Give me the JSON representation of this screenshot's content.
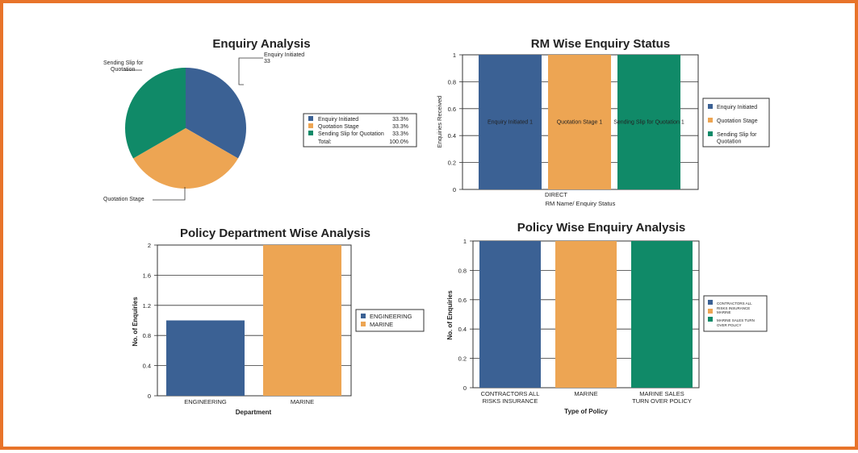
{
  "colors": {
    "blue": "#3b6194",
    "orange": "#eda553",
    "green": "#108a68",
    "border": "#e8742a"
  },
  "chart_data": [
    {
      "type": "pie",
      "title": "Enquiry Analysis",
      "categories": [
        "Enquiry Initiated",
        "Quotation Stage",
        "Sending Slip for Quotation"
      ],
      "values": [
        33.3,
        33.3,
        33.3
      ],
      "percent_labels": [
        "33.3%",
        "33.3%",
        "33.3%"
      ],
      "total_label": "Total:",
      "total_value": "100.0%",
      "callouts": {
        "initiated_label": "Enquiry Initiated",
        "initiated_value": "33",
        "quotation": "Quotation Stage",
        "slip_line1": "Sending Slip for",
        "slip_line2": "Quotation"
      },
      "legend": "right"
    },
    {
      "type": "bar",
      "title": "RM Wise Enquiry Status",
      "categories": [
        "DIRECT"
      ],
      "series": [
        {
          "name": "Enquiry Initiated",
          "values": [
            1
          ],
          "data_label": "Enquiry Initiated 1"
        },
        {
          "name": "Quotation Stage",
          "values": [
            1
          ],
          "data_label": "Quotation Stage 1"
        },
        {
          "name": "Sending Slip for Quotation",
          "values": [
            1
          ],
          "data_label": "Sending Slip for Quotation 1"
        }
      ],
      "legend_lines": [
        [
          "Enquiry Initiated"
        ],
        [
          "Quotation Stage"
        ],
        [
          "Sending Slip for",
          "Quotation"
        ]
      ],
      "xlabel": "RM Name/ Enquiry Status",
      "ylabel": "Enquiries Received",
      "ylim": [
        0,
        1
      ],
      "yticks": [
        "0",
        "0.2",
        "0.4",
        "0.6",
        "0.8",
        "1"
      ],
      "legend": "right"
    },
    {
      "type": "bar",
      "title": "Policy Department Wise Analysis",
      "categories": [
        "ENGINEERING",
        "MARINE"
      ],
      "values": [
        1,
        2
      ],
      "legend_lines": [
        [
          "ENGINEERING"
        ],
        [
          "MARINE"
        ]
      ],
      "xlabel": "Department",
      "ylabel": "No. of Enquiries",
      "ylim": [
        0,
        2
      ],
      "yticks": [
        "0",
        "0.4",
        "0.8",
        "1.2",
        "1.6",
        "2"
      ],
      "legend": "right"
    },
    {
      "type": "bar",
      "title": "Policy Wise Enquiry Analysis",
      "categories": [
        "CONTRACTORS ALL RISKS INSURANCE",
        "MARINE",
        "MARINE SALES TURN OVER POLICY"
      ],
      "category_lines": [
        [
          "CONTRACTORS ALL",
          "RISKS INSURANCE"
        ],
        [
          "MARINE"
        ],
        [
          "MARINE SALES",
          "TURN OVER POLICY"
        ]
      ],
      "values": [
        1,
        1,
        1
      ],
      "legend_lines": [
        [
          "CONTRACTORS ALL",
          "RISKS INSURANCE"
        ],
        [
          "MARINE"
        ],
        [
          "MARINE SALES TURN",
          "OVER POLICY"
        ]
      ],
      "xlabel": "Type of Policy",
      "ylabel": "No. of Enquiries",
      "ylim": [
        0,
        1
      ],
      "yticks": [
        "0",
        "0.2",
        "0.4",
        "0.6",
        "0.8",
        "1"
      ],
      "legend": "right"
    }
  ]
}
